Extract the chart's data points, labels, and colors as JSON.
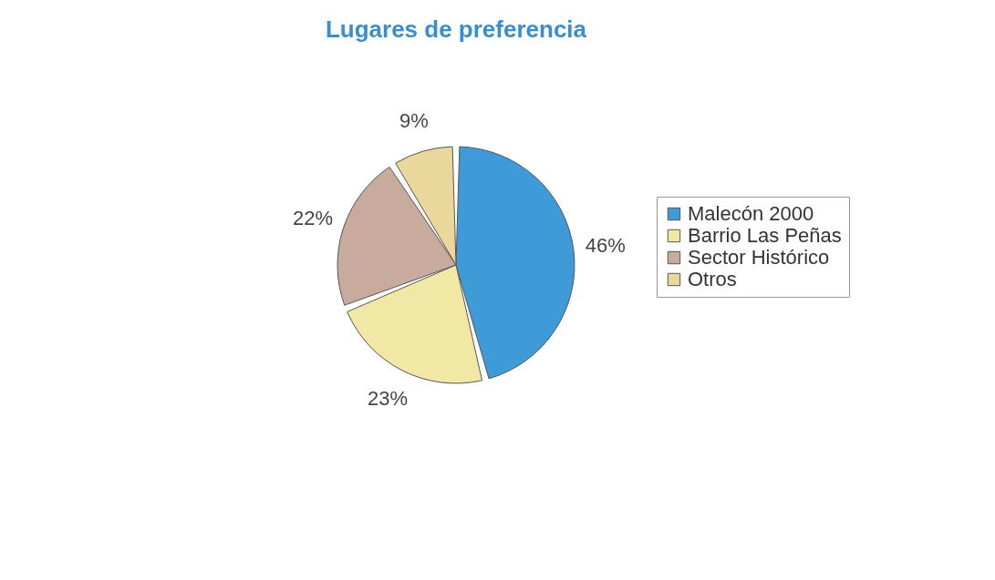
{
  "chart_data": {
    "type": "pie",
    "title": "Lugares de preferencia",
    "categories": [
      "Malecón 2000",
      "Barrio Las Peñas",
      "Sector Histórico",
      "Otros"
    ],
    "values": [
      46,
      23,
      22,
      9
    ],
    "colors": [
      "#3f9ad8",
      "#f1e8a6",
      "#c8ab9c",
      "#e9d79c"
    ],
    "value_labels": [
      "46%",
      "23%",
      "22%",
      "9%"
    ],
    "legend": "right"
  }
}
